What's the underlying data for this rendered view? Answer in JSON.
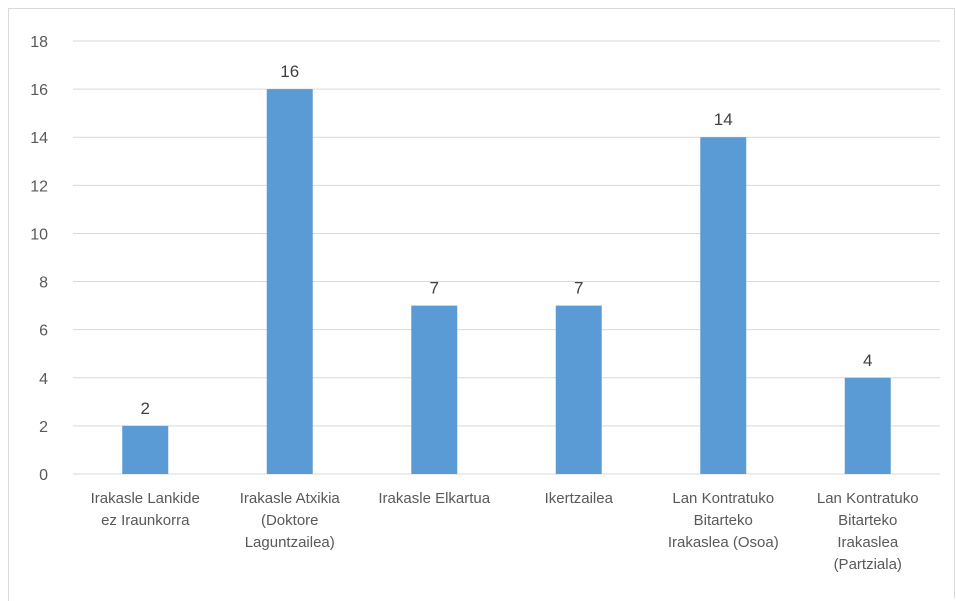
{
  "chart_data": {
    "type": "bar",
    "categories": [
      [
        "Irakasle Lankide",
        "ez Iraunkorra"
      ],
      [
        "Irakasle Atxikia",
        "(Doktore",
        "Laguntzailea)"
      ],
      [
        "Irakasle Elkartua"
      ],
      [
        "Ikertzailea"
      ],
      [
        "Lan Kontratuko",
        "Bitarteko",
        "Irakaslea (Osoa)"
      ],
      [
        "Lan Kontratuko",
        "Bitarteko",
        "Irakaslea",
        "(Partziala)"
      ]
    ],
    "values": [
      2,
      16,
      7,
      7,
      14,
      4
    ],
    "data_labels": [
      "2",
      "16",
      "7",
      "7",
      "14",
      "4"
    ],
    "title": "",
    "xlabel": "",
    "ylabel": "",
    "ylim": [
      0,
      18
    ],
    "yticks": [
      "0",
      "2",
      "4",
      "6",
      "8",
      "10",
      "12",
      "14",
      "16",
      "18"
    ],
    "grid": true,
    "legend": "none",
    "colors": {
      "bar": "#5b9bd5",
      "grid": "#d9d9d9",
      "axis": "#d9d9d9"
    }
  }
}
